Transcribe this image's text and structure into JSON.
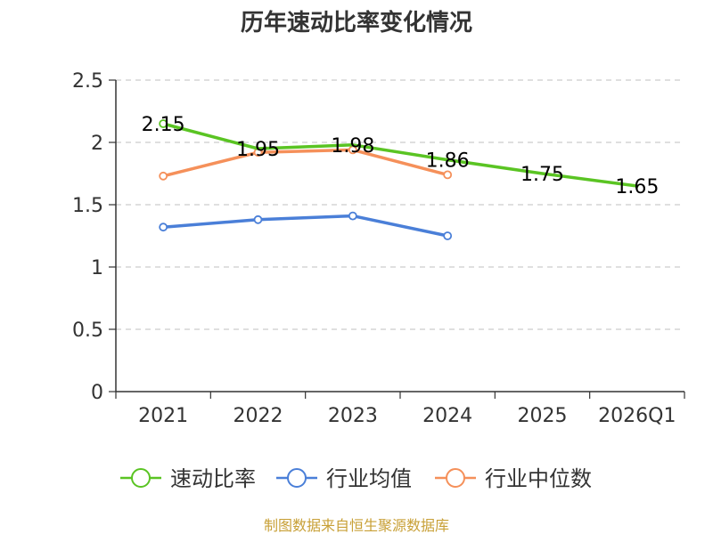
{
  "chart_data": {
    "type": "line",
    "title": "历年速动比率变化情况",
    "categories": [
      "2021",
      "2022",
      "2023",
      "2024",
      "2025",
      "2026Q1"
    ],
    "ylim": [
      0,
      2.5
    ],
    "yticks": [
      "0",
      "0.5",
      "1",
      "1.5",
      "2",
      "2.5"
    ],
    "grid": true,
    "legend_position": "bottom",
    "series": [
      {
        "name": "速动比率",
        "color": "#5ac423",
        "values": [
          2.15,
          1.95,
          1.98,
          1.86,
          1.75,
          1.65
        ],
        "labels": [
          "2.15",
          "1.95",
          "1.98",
          "1.86",
          "1.75",
          "1.65"
        ],
        "show_labels": true,
        "markers": "first"
      },
      {
        "name": "行业均值",
        "color": "#4a7fd8",
        "values": [
          1.32,
          1.38,
          1.41,
          1.25,
          null,
          null
        ],
        "show_labels": false,
        "markers": "all"
      },
      {
        "name": "行业中位数",
        "color": "#f5905a",
        "values": [
          1.73,
          1.92,
          1.94,
          1.74,
          null,
          null
        ],
        "show_labels": false,
        "markers": "all"
      }
    ]
  },
  "source_text": "制图数据来自恒生聚源数据库"
}
